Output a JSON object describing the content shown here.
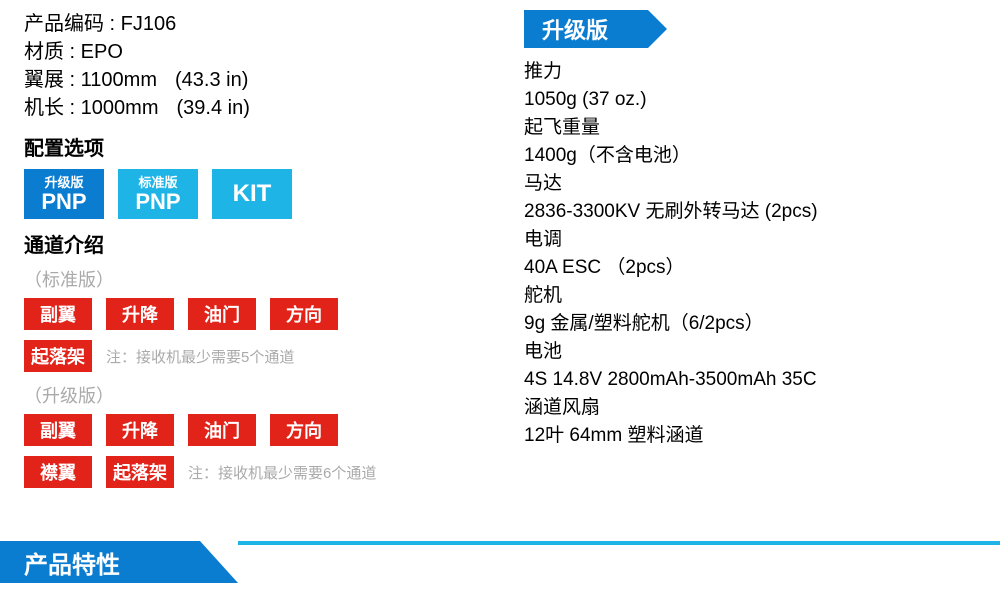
{
  "colors": {
    "blue": "#0a7dd1",
    "cyan": "#1fb4e6",
    "red": "#e2231a",
    "gray": "#a8a8a8"
  },
  "left": {
    "specs": [
      {
        "key": "产品编码",
        "val": "FJ106",
        "extra": ""
      },
      {
        "key": "材质",
        "val": "EPO",
        "extra": ""
      },
      {
        "key": "翼展",
        "val": "1100mm",
        "extra": "(43.3 in)"
      },
      {
        "key": "机长",
        "val": "1000mm",
        "extra": "(39.4 in)"
      }
    ],
    "config_title": "配置选项",
    "configs": [
      {
        "top": "升级版",
        "bot": "PNP",
        "bg": "#0a7dd1"
      },
      {
        "top": "标准版",
        "bot": "PNP",
        "bg": "#1fb4e6"
      },
      {
        "top": "",
        "bot": "KIT",
        "bg": "#1fb4e6"
      }
    ],
    "channel_title": "通道介绍",
    "groups": [
      {
        "sub": "（标准版）",
        "rows": [
          {
            "items": [
              "副翼",
              "升降",
              "油门",
              "方向"
            ],
            "note": ""
          },
          {
            "items": [
              "起落架"
            ],
            "note": "注：接收机最少需要5个通道"
          }
        ]
      },
      {
        "sub": "（升级版）",
        "rows": [
          {
            "items": [
              "副翼",
              "升降",
              "油门",
              "方向"
            ],
            "note": ""
          },
          {
            "items": [
              "襟翼",
              "起落架"
            ],
            "note": "注：接收机最少需要6个通道"
          }
        ]
      }
    ]
  },
  "right": {
    "banner": "升级版",
    "pairs": [
      {
        "lbl": "推力",
        "vl": "1050g (37 oz.)"
      },
      {
        "lbl": "起飞重量",
        "vl": "1400g（不含电池）"
      },
      {
        "lbl": "马达",
        "vl": "2836-3300KV  无刷外转马达 (2pcs)"
      },
      {
        "lbl": "电调",
        "vl": "40A ESC （2pcs）"
      },
      {
        "lbl": "舵机",
        "vl": "9g 金属/塑料舵机（6/2pcs）"
      },
      {
        "lbl": "电池",
        "vl": "4S  14.8V  2800mAh-3500mAh  35C"
      },
      {
        "lbl": "涵道风扇",
        "vl": "12叶  64mm  塑料涵道"
      }
    ]
  },
  "bottom": {
    "title": "产品特性"
  }
}
